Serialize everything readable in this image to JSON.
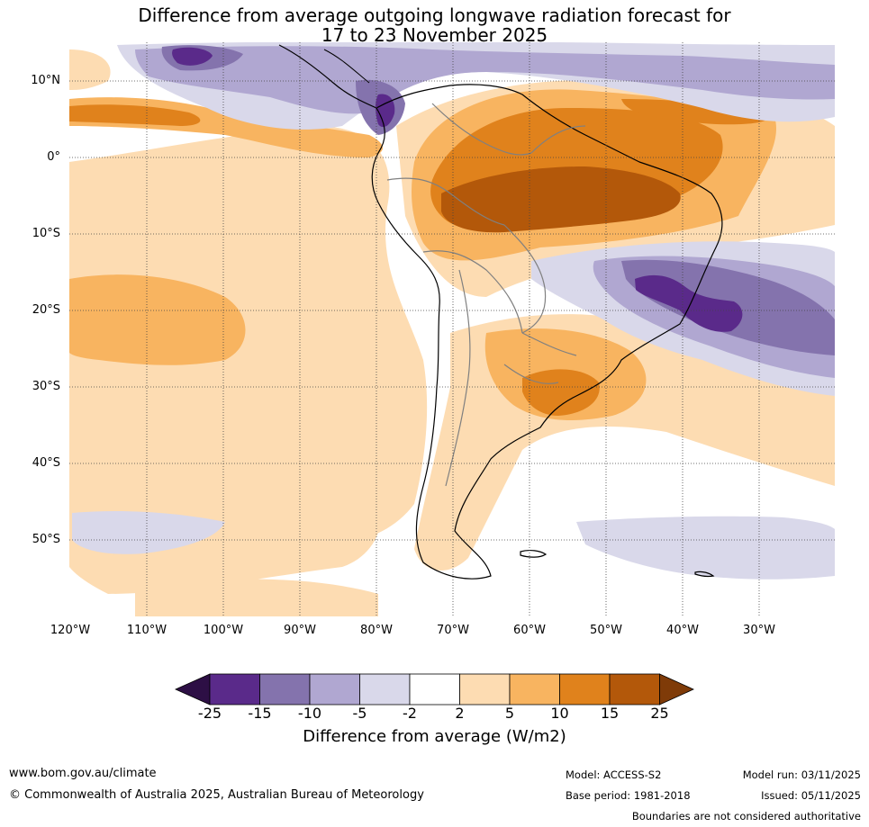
{
  "title": {
    "line1": "Difference from average outgoing longwave radiation forecast for",
    "line2": "17 to 23 November 2025"
  },
  "map": {
    "lat_labels": [
      "10°N",
      "0°",
      "10°S",
      "20°S",
      "30°S",
      "40°S",
      "50°S"
    ],
    "lon_labels": [
      "120°W",
      "110°W",
      "100°W",
      "90°W",
      "80°W",
      "70°W",
      "60°W",
      "50°W",
      "40°W",
      "30°W"
    ]
  },
  "colorbar": {
    "labels": [
      "-25",
      "-15",
      "-10",
      "-5",
      "-2",
      "2",
      "5",
      "10",
      "15",
      "25"
    ],
    "colors": {
      "min_ext": "#2d0f45",
      "c1": "#5a2a8a",
      "c2": "#8473ad",
      "c3": "#b0a7d1",
      "c4": "#d9d8ea",
      "c5": "#ffffff",
      "c6": "#fddcb2",
      "c7": "#f8b460",
      "c8": "#e0821c",
      "c9": "#b3580a",
      "max_ext": "#7f3b08"
    },
    "title": "Difference from average (W/m2)"
  },
  "footer": {
    "website": "www.bom.gov.au/climate",
    "copyright": "© Commonwealth of Australia 2025, Australian Bureau of Meteorology",
    "model": "Model: ACCESS-S2",
    "base_period": "Base period: 1981-2018",
    "model_run": "Model run: 03/11/2025",
    "issued": "Issued: 05/11/2025",
    "disclaimer": "Boundaries are not considered authoritative"
  }
}
